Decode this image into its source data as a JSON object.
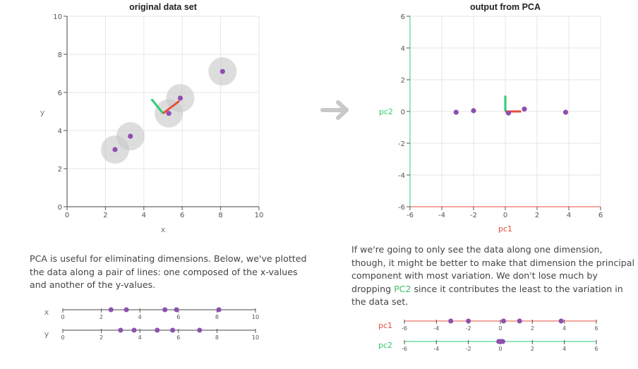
{
  "colors": {
    "point": "#8e4fb0",
    "pc1": "#e74c3c",
    "pc2": "#2ecc71",
    "circle": "#c8c8c8",
    "arrow": "#c8c8c8",
    "grid": "#e6e6e6"
  },
  "left_panel": {
    "paragraph": "PCA is useful for eliminating dimensions. Below, we've plotted the data along a pair of lines: one composed of the x-values and another of the y-values."
  },
  "right_panel": {
    "paragraph_before": "If we're going to only see the data along one dimension, though, it might be better to make that dimension the principal component with most variation. We don't lose much by dropping ",
    "paragraph_highlight": "PC2",
    "paragraph_after": " since it contributes the least to the variation in the data set."
  },
  "chart_data": [
    {
      "type": "scatter",
      "title": "original data set",
      "xlabel": "x",
      "ylabel": "y",
      "xlim": [
        0,
        10
      ],
      "ylim": [
        0,
        10
      ],
      "xticks": [
        0,
        2,
        4,
        6,
        8,
        10
      ],
      "yticks": [
        0,
        2,
        4,
        6,
        8,
        10
      ],
      "grid": true,
      "points": [
        {
          "x": 2.5,
          "y": 3.0
        },
        {
          "x": 3.3,
          "y": 3.7
        },
        {
          "x": 5.3,
          "y": 4.9
        },
        {
          "x": 5.9,
          "y": 5.7
        },
        {
          "x": 8.1,
          "y": 7.1
        }
      ],
      "pc_vectors": {
        "origin": [
          5.0,
          4.9
        ],
        "pc1_end": [
          5.85,
          5.55
        ],
        "pc2_end": [
          4.4,
          5.65
        ]
      }
    },
    {
      "type": "scatter",
      "title": "output from PCA",
      "xlabel": "pc1",
      "ylabel": "pc2",
      "xlim": [
        -6,
        6
      ],
      "ylim": [
        -6,
        6
      ],
      "xticks": [
        -6,
        -4,
        -2,
        0,
        2,
        4,
        6
      ],
      "yticks": [
        -6,
        -4,
        -2,
        0,
        2,
        4,
        6
      ],
      "grid": true,
      "points": [
        {
          "x": -3.1,
          "y": -0.05
        },
        {
          "x": -2.0,
          "y": 0.05
        },
        {
          "x": 0.2,
          "y": -0.1
        },
        {
          "x": 1.2,
          "y": 0.15
        },
        {
          "x": 3.8,
          "y": -0.05
        }
      ],
      "pc_vectors": {
        "origin": [
          0,
          0
        ],
        "pc1_end": [
          1.0,
          0
        ],
        "pc2_end": [
          0,
          1.0
        ]
      }
    },
    {
      "type": "scatter",
      "title": "",
      "series": [
        {
          "name": "x",
          "values": [
            2.5,
            3.3,
            5.3,
            5.9,
            8.1
          ]
        },
        {
          "name": "y",
          "values": [
            3.0,
            3.7,
            4.9,
            5.7,
            7.1
          ]
        }
      ],
      "xlim": [
        0,
        10
      ],
      "ticks": [
        0,
        2,
        4,
        6,
        8,
        10
      ]
    },
    {
      "type": "scatter",
      "title": "",
      "series": [
        {
          "name": "pc1",
          "values": [
            -3.1,
            -2.0,
            0.2,
            1.2,
            3.8
          ]
        },
        {
          "name": "pc2",
          "values": [
            -0.05,
            0.05,
            -0.1,
            0.15,
            -0.05
          ]
        }
      ],
      "xlim": [
        -6,
        6
      ],
      "ticks": [
        -6,
        -4,
        -2,
        0,
        2,
        4,
        6
      ]
    }
  ]
}
